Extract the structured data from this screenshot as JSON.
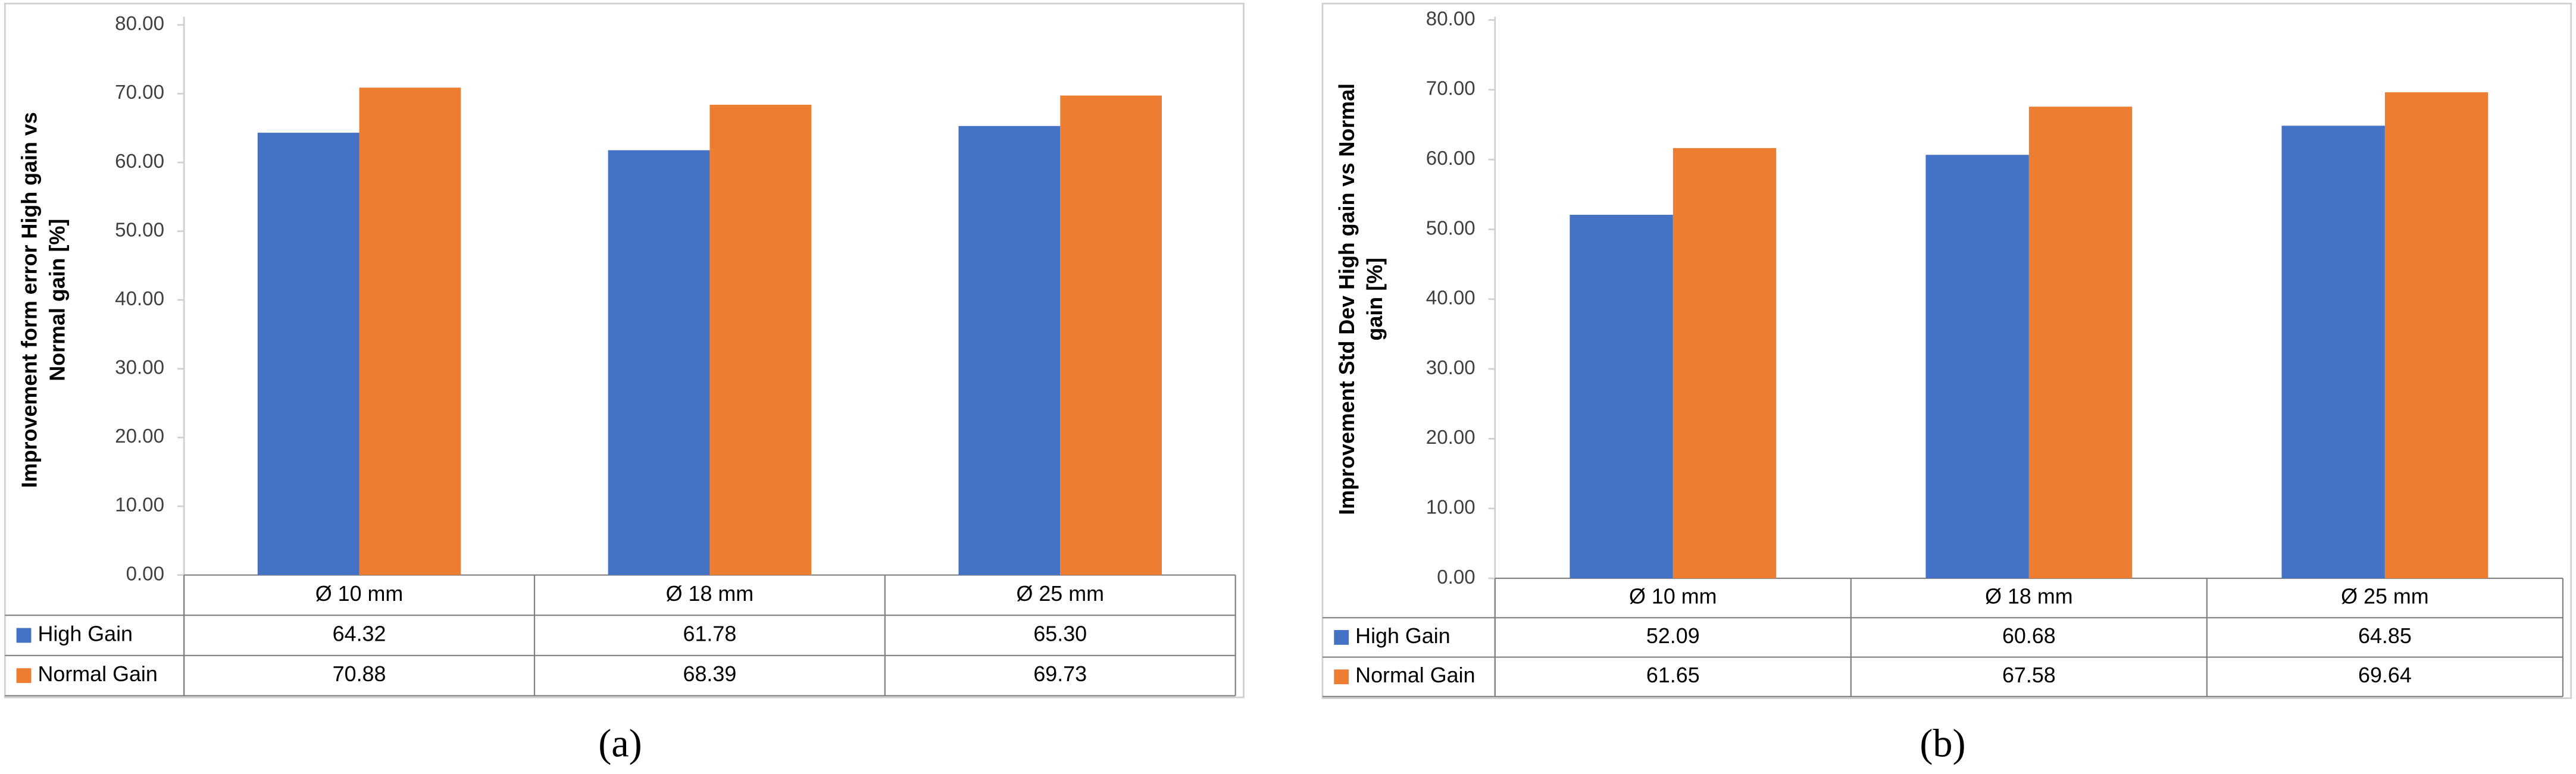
{
  "chart_data": [
    {
      "type": "bar",
      "panel_label": "(a)",
      "ylabel": [
        "Improvement form error High gain vs",
        "Normal gain [%]"
      ],
      "categories": [
        "Ø 10 mm",
        "Ø 18 mm",
        "Ø 25 mm"
      ],
      "series": [
        {
          "name": "High Gain",
          "color": "#4472c4",
          "values": [
            64.32,
            61.78,
            65.3
          ],
          "value_labels": [
            "64.32",
            "61.78",
            "65.30"
          ]
        },
        {
          "name": "Normal Gain",
          "color": "#ed7d31",
          "values": [
            70.88,
            68.39,
            69.73
          ],
          "value_labels": [
            "70.88",
            "68.39",
            "69.73"
          ]
        }
      ],
      "ylim": [
        0,
        80
      ],
      "yticks": [
        {
          "value": 0,
          "label": "0.00"
        },
        {
          "value": 10,
          "label": "10.00"
        },
        {
          "value": 20,
          "label": "20.00"
        },
        {
          "value": 30,
          "label": "30.00"
        },
        {
          "value": 40,
          "label": "40.00"
        },
        {
          "value": 50,
          "label": "50.00"
        },
        {
          "value": 60,
          "label": "60.00"
        },
        {
          "value": 70,
          "label": "70.00"
        },
        {
          "value": 80,
          "label": "80.00"
        }
      ],
      "grid": false
    },
    {
      "type": "bar",
      "panel_label": "(b)",
      "ylabel": [
        "Improvement Std Dev High gain vs Normal",
        "gain [%]"
      ],
      "categories": [
        "Ø 10 mm",
        "Ø 18 mm",
        "Ø 25 mm"
      ],
      "series": [
        {
          "name": "High Gain",
          "color": "#4472c4",
          "values": [
            52.09,
            60.68,
            64.85
          ],
          "value_labels": [
            "52.09",
            "60.68",
            "64.85"
          ]
        },
        {
          "name": "Normal Gain",
          "color": "#ed7d31",
          "values": [
            61.65,
            67.58,
            69.64
          ],
          "value_labels": [
            "61.65",
            "67.58",
            "69.64"
          ]
        }
      ],
      "ylim": [
        0,
        80
      ],
      "yticks": [
        {
          "value": 0,
          "label": "0.00"
        },
        {
          "value": 10,
          "label": "10.00"
        },
        {
          "value": 20,
          "label": "20.00"
        },
        {
          "value": 30,
          "label": "30.00"
        },
        {
          "value": 40,
          "label": "40.00"
        },
        {
          "value": 50,
          "label": "50.00"
        },
        {
          "value": 60,
          "label": "60.00"
        },
        {
          "value": 70,
          "label": "70.00"
        },
        {
          "value": 80,
          "label": "80.00"
        }
      ],
      "grid": false
    }
  ]
}
